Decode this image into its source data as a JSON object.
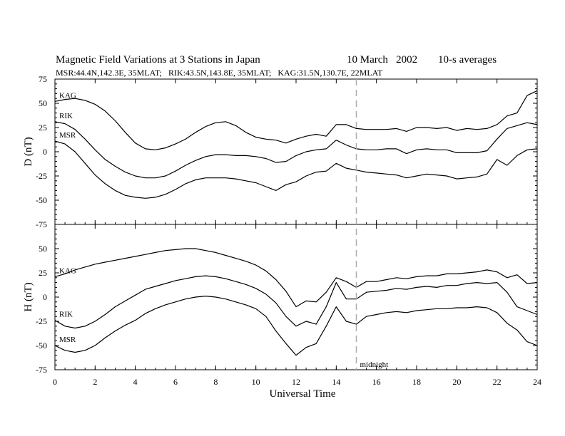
{
  "chart_data": {
    "type": "line",
    "title": "Magnetic Field Variations at 3 Stations in Japan",
    "date": "10 March   2002",
    "averaging": "10-s averages",
    "subtitle": "MSR:44.4N,142.3E, 35MLAT;   RIK:43.5N,143.8E, 35MLAT;   KAG:31.5N,130.7E, 22MLAT",
    "xlabel": "Universal Time",
    "xlim": [
      0,
      24
    ],
    "xticks": [
      "0",
      "2",
      "4",
      "6",
      "8",
      "10",
      "12",
      "14",
      "16",
      "18",
      "20",
      "22",
      "24"
    ],
    "annotation": {
      "text": "midnight",
      "x": 15
    },
    "panels": [
      {
        "ylabel": "D (nT)",
        "ylim": [
          -75,
          75
        ],
        "yticks": [
          "75",
          "50",
          "25",
          "0",
          "-25",
          "-50",
          "-75"
        ],
        "series": [
          {
            "name": "KAG",
            "x": [
              0,
              0.5,
              1,
              1.5,
              2,
              2.5,
              3,
              3.5,
              4,
              4.5,
              5,
              5.5,
              6,
              6.5,
              7,
              7.5,
              8,
              8.5,
              9,
              9.5,
              10,
              10.5,
              11,
              11.5,
              12,
              12.5,
              13,
              13.5,
              14,
              14.5,
              15,
              15.5,
              16,
              16.5,
              17,
              17.5,
              18,
              18.5,
              19,
              19.5,
              20,
              20.5,
              21,
              21.5,
              22,
              22.5,
              23,
              23.5,
              24
            ],
            "y": [
              52,
              54,
              55,
              53,
              49,
              42,
              32,
              20,
              9,
              3,
              2,
              4,
              8,
              13,
              20,
              26,
              30,
              31,
              27,
              20,
              15,
              13,
              12,
              9,
              13,
              16,
              18,
              16,
              28,
              28,
              24,
              23,
              23,
              23,
              24,
              21,
              25,
              25,
              24,
              25,
              22,
              24,
              23,
              24,
              28,
              37,
              40,
              58,
              63
            ]
          },
          {
            "name": "RIK",
            "x": [
              0,
              0.5,
              1,
              1.5,
              2,
              2.5,
              3,
              3.5,
              4,
              4.5,
              5,
              5.5,
              6,
              6.5,
              7,
              7.5,
              8,
              8.5,
              9,
              9.5,
              10,
              10.5,
              11,
              11.5,
              12,
              12.5,
              13,
              13.5,
              14,
              14.5,
              15,
              15.5,
              16,
              16.5,
              17,
              17.5,
              18,
              18.5,
              19,
              19.5,
              20,
              20.5,
              21,
              21.5,
              22,
              22.5,
              23,
              23.5,
              24
            ],
            "y": [
              31,
              29,
              23,
              13,
              2,
              -8,
              -15,
              -21,
              -25,
              -27,
              -27,
              -25,
              -20,
              -14,
              -9,
              -5,
              -3,
              -3,
              -4,
              -4,
              -5,
              -7,
              -11,
              -10,
              -4,
              0,
              2,
              3,
              12,
              7,
              3,
              2,
              2,
              3,
              3,
              -2,
              2,
              3,
              2,
              2,
              -1,
              -1,
              -1,
              1,
              13,
              24,
              27,
              30,
              28
            ]
          },
          {
            "name": "MSR",
            "x": [
              0,
              0.5,
              1,
              1.5,
              2,
              2.5,
              3,
              3.5,
              4,
              4.5,
              5,
              5.5,
              6,
              6.5,
              7,
              7.5,
              8,
              8.5,
              9,
              9.5,
              10,
              10.5,
              11,
              11.5,
              12,
              12.5,
              13,
              13.5,
              14,
              14.5,
              15,
              15.5,
              16,
              16.5,
              17,
              17.5,
              18,
              18.5,
              19,
              19.5,
              20,
              20.5,
              21,
              21.5,
              22,
              22.5,
              23,
              23.5,
              24
            ],
            "y": [
              11,
              8,
              0,
              -12,
              -24,
              -33,
              -40,
              -45,
              -47,
              -48,
              -47,
              -44,
              -39,
              -33,
              -29,
              -27,
              -27,
              -27,
              -28,
              -30,
              -32,
              -36,
              -40,
              -34,
              -31,
              -25,
              -21,
              -20,
              -12,
              -17,
              -19,
              -21,
              -22,
              -23,
              -24,
              -27,
              -25,
              -23,
              -24,
              -25,
              -28,
              -27,
              -26,
              -23,
              -8,
              -14,
              -4,
              2,
              3
            ]
          }
        ]
      },
      {
        "ylabel": "H (nT)",
        "ylim": [
          -75,
          75
        ],
        "yticks": [
          "75",
          "50",
          "25",
          "0",
          "-25",
          "-50",
          "-75"
        ],
        "series": [
          {
            "name": "KAG",
            "x": [
              0,
              0.5,
              1,
              1.5,
              2,
              2.5,
              3,
              3.5,
              4,
              4.5,
              5,
              5.5,
              6,
              6.5,
              7,
              7.5,
              8,
              8.5,
              9,
              9.5,
              10,
              10.5,
              11,
              11.5,
              12,
              12.5,
              13,
              13.5,
              14,
              14.5,
              15,
              15.5,
              16,
              16.5,
              17,
              17.5,
              18,
              18.5,
              19,
              19.5,
              20,
              20.5,
              21,
              21.5,
              22,
              22.5,
              23,
              23.5,
              24
            ],
            "y": [
              21,
              24,
              28,
              31,
              34,
              36,
              38,
              40,
              42,
              44,
              46,
              48,
              49,
              50,
              50,
              48,
              46,
              43,
              40,
              37,
              33,
              27,
              18,
              6,
              -10,
              -4,
              -5,
              5,
              20,
              16,
              10,
              16,
              16,
              18,
              20,
              19,
              21,
              22,
              22,
              24,
              24,
              25,
              26,
              28,
              26,
              20,
              23,
              14,
              15
            ]
          },
          {
            "name": "RIK",
            "x": [
              0,
              0.5,
              1,
              1.5,
              2,
              2.5,
              3,
              3.5,
              4,
              4.5,
              5,
              5.5,
              6,
              6.5,
              7,
              7.5,
              8,
              8.5,
              9,
              9.5,
              10,
              10.5,
              11,
              11.5,
              12,
              12.5,
              13,
              13.5,
              14,
              14.5,
              15,
              15.5,
              16,
              16.5,
              17,
              17.5,
              18,
              18.5,
              19,
              19.5,
              20,
              20.5,
              21,
              21.5,
              22,
              22.5,
              23,
              23.5,
              24
            ],
            "y": [
              -24,
              -30,
              -32,
              -30,
              -25,
              -18,
              -10,
              -4,
              2,
              8,
              11,
              14,
              17,
              19,
              21,
              22,
              21,
              19,
              16,
              13,
              9,
              3,
              -6,
              -20,
              -30,
              -25,
              -28,
              -10,
              15,
              -2,
              -2,
              5,
              6,
              7,
              9,
              8,
              10,
              11,
              10,
              12,
              12,
              14,
              15,
              14,
              15,
              5,
              -10,
              -14,
              -18
            ]
          },
          {
            "name": "MSR",
            "x": [
              0,
              0.5,
              1,
              1.5,
              2,
              2.5,
              3,
              3.5,
              4,
              4.5,
              5,
              5.5,
              6,
              6.5,
              7,
              7.5,
              8,
              8.5,
              9,
              9.5,
              10,
              10.5,
              11,
              11.5,
              12,
              12.5,
              13,
              13.5,
              14,
              14.5,
              15,
              15.5,
              16,
              16.5,
              17,
              17.5,
              18,
              18.5,
              19,
              19.5,
              20,
              20.5,
              21,
              21.5,
              22,
              22.5,
              23,
              23.5,
              24
            ],
            "y": [
              -50,
              -55,
              -57,
              -55,
              -50,
              -42,
              -35,
              -29,
              -24,
              -17,
              -12,
              -8,
              -5,
              -2,
              0,
              1,
              0,
              -2,
              -5,
              -8,
              -12,
              -20,
              -35,
              -48,
              -60,
              -52,
              -48,
              -30,
              -10,
              -25,
              -28,
              -20,
              -18,
              -16,
              -15,
              -16,
              -14,
              -13,
              -12,
              -12,
              -11,
              -11,
              -10,
              -11,
              -16,
              -27,
              -34,
              -46,
              -50
            ]
          }
        ]
      }
    ]
  }
}
